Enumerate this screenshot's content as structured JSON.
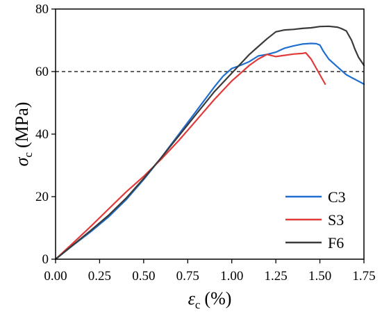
{
  "chart_data": {
    "type": "line",
    "xlabel": "ε",
    "xlabel_sub": "c",
    "xlabel_unit": "(%)",
    "ylabel": "σ",
    "ylabel_sub": "c",
    "ylabel_unit": "(MPa)",
    "xlim": [
      0,
      1.75
    ],
    "ylim": [
      0,
      80
    ],
    "xticks": [
      0.0,
      0.25,
      0.5,
      0.75,
      1.0,
      1.25,
      1.5,
      1.75
    ],
    "xtick_labels": [
      "0.00",
      "0.25",
      "0.50",
      "0.75",
      "1.00",
      "1.25",
      "1.50",
      "1.75"
    ],
    "yticks": [
      0,
      20,
      40,
      60,
      80
    ],
    "ytick_labels": [
      "0",
      "20",
      "40",
      "60",
      "80"
    ],
    "grid": false,
    "legend_position": "bottom-right",
    "reference_line": {
      "y": 60,
      "style": "dashed"
    },
    "series": [
      {
        "name": "C3",
        "color": "#1f6fd0",
        "x": [
          0,
          0.1,
          0.2,
          0.3,
          0.4,
          0.5,
          0.6,
          0.7,
          0.8,
          0.9,
          0.95,
          1.0,
          1.05,
          1.1,
          1.15,
          1.2,
          1.25,
          1.3,
          1.35,
          1.4,
          1.45,
          1.48,
          1.5,
          1.52,
          1.55,
          1.6,
          1.65,
          1.7,
          1.75
        ],
        "y": [
          0,
          4.5,
          8.8,
          13.5,
          19,
          25.5,
          32.5,
          40,
          47.5,
          55,
          58.5,
          61,
          62,
          63.2,
          65,
          65.5,
          66.2,
          67.5,
          68.2,
          68.8,
          69,
          68.9,
          68.5,
          66.5,
          64,
          61.5,
          59,
          57.5,
          56
        ]
      },
      {
        "name": "S3",
        "color": "#e03a3a",
        "x": [
          0,
          0.1,
          0.2,
          0.3,
          0.4,
          0.5,
          0.6,
          0.7,
          0.8,
          0.9,
          1.0,
          1.05,
          1.1,
          1.15,
          1.2,
          1.25,
          1.3,
          1.35,
          1.4,
          1.42,
          1.45,
          1.48,
          1.5,
          1.53
        ],
        "y": [
          0,
          5.2,
          10.5,
          16,
          21.5,
          26.5,
          32,
          38,
          44.5,
          51,
          57,
          59.5,
          62,
          64,
          65.5,
          64.8,
          65.2,
          65.6,
          65.8,
          66,
          64,
          61,
          59,
          56
        ]
      },
      {
        "name": "F6",
        "color": "#3a3a3a",
        "x": [
          0,
          0.1,
          0.2,
          0.3,
          0.4,
          0.5,
          0.6,
          0.7,
          0.8,
          0.9,
          1.0,
          1.05,
          1.1,
          1.15,
          1.2,
          1.25,
          1.3,
          1.35,
          1.4,
          1.45,
          1.5,
          1.55,
          1.6,
          1.62,
          1.65,
          1.68,
          1.7,
          1.72,
          1.75
        ],
        "y": [
          0,
          4.6,
          9.2,
          14,
          19.5,
          25.8,
          32.5,
          39.5,
          46.5,
          53.5,
          59.5,
          62.5,
          65.5,
          68,
          70.5,
          72.7,
          73.3,
          73.5,
          73.8,
          74,
          74.4,
          74.5,
          74.2,
          73.8,
          73,
          70,
          67,
          64.5,
          62
        ]
      }
    ]
  }
}
